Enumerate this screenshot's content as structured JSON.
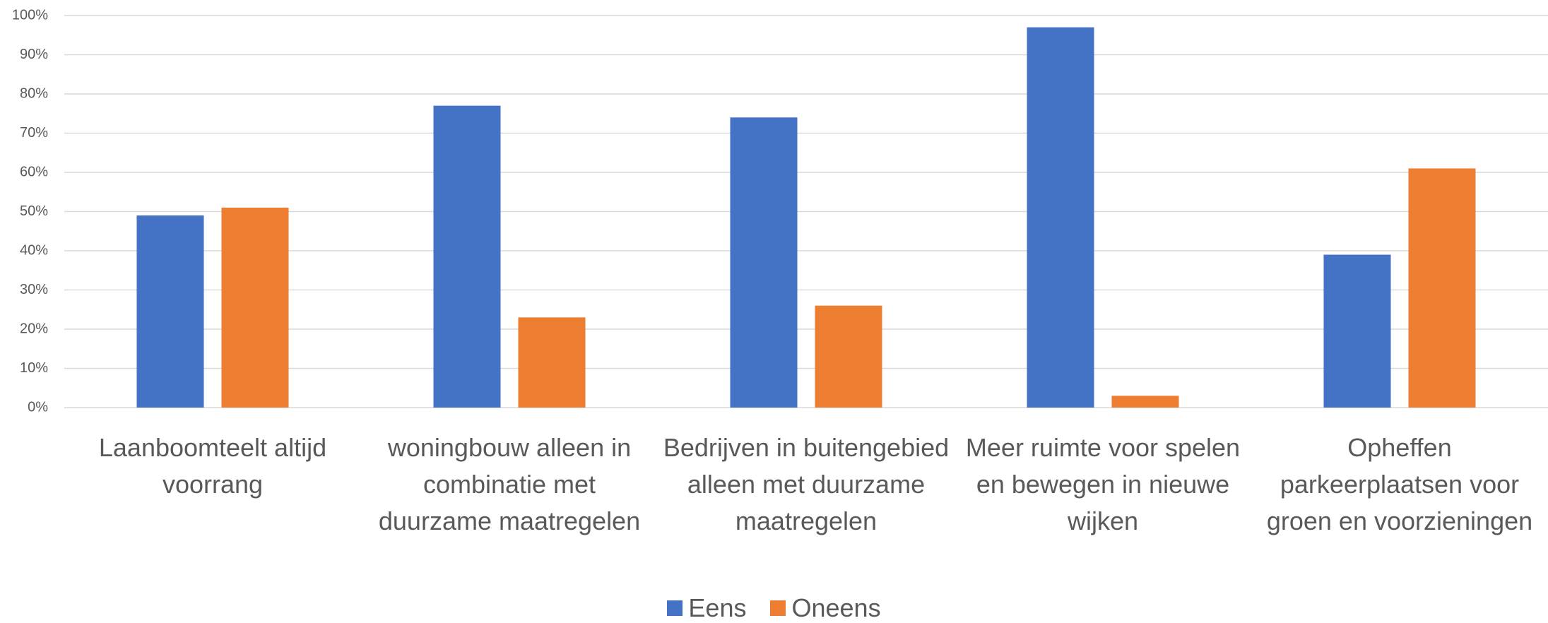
{
  "chart_data": {
    "type": "bar",
    "categories": [
      "Laanboomteelt altijd voorrang",
      "woningbouw alleen in combinatie met duurzame maatregelen",
      "Bedrijven in buitengebied alleen met duurzame maatregelen",
      "Meer ruimte voor spelen en bewegen in nieuwe wijken",
      "Opheffen parkeerplaatsen voor groen en voorzieningen"
    ],
    "series": [
      {
        "name": "Eens",
        "color": "#4472c4",
        "values": [
          49,
          77,
          74,
          97,
          39
        ]
      },
      {
        "name": "Oneens",
        "color": "#ed7d31",
        "values": [
          51,
          23,
          26,
          3,
          61
        ]
      }
    ],
    "ylim": [
      0,
      100
    ],
    "yticks": [
      {
        "value": 0,
        "label": "0%"
      },
      {
        "value": 10,
        "label": "10%"
      },
      {
        "value": 20,
        "label": "20%"
      },
      {
        "value": 30,
        "label": "30%"
      },
      {
        "value": 40,
        "label": "40%"
      },
      {
        "value": 50,
        "label": "50%"
      },
      {
        "value": 60,
        "label": "60%"
      },
      {
        "value": 70,
        "label": "70%"
      },
      {
        "value": 80,
        "label": "80%"
      },
      {
        "value": 90,
        "label": "90%"
      },
      {
        "value": 100,
        "label": "100%"
      }
    ],
    "grid": true,
    "legend": "bottom"
  }
}
